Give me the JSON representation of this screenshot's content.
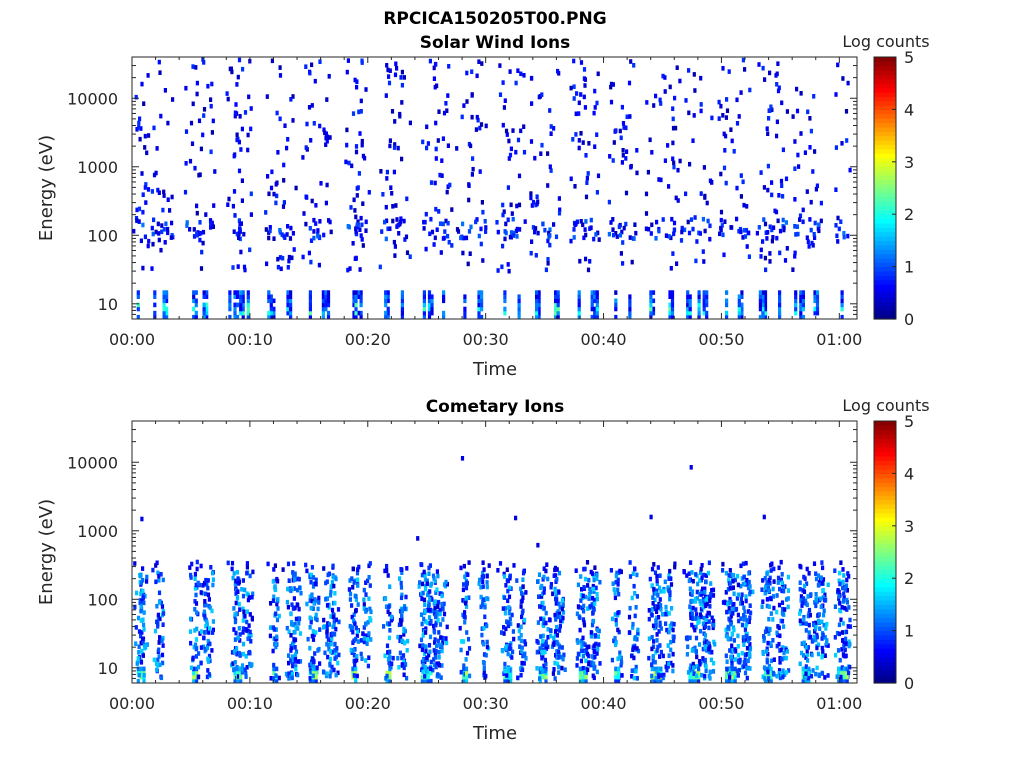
{
  "figure": {
    "title": "RPCICA150205T00.PNG"
  },
  "chart_data": [
    {
      "type": "heatmap",
      "title": "Solar Wind Ions",
      "xlabel": "Time",
      "ylabel": "Energy (eV)",
      "x_ticks": [
        "00:00",
        "00:10",
        "00:20",
        "00:30",
        "00:40",
        "00:50",
        "01:00"
      ],
      "x_tick_minutes": [
        0,
        10,
        20,
        30,
        40,
        50,
        60
      ],
      "xlim_minutes": [
        0,
        61.5
      ],
      "y_scale": "log",
      "ylim": [
        6,
        40000
      ],
      "y_ticks": [
        "10",
        "100",
        "1000",
        "10000"
      ],
      "y_tick_values": [
        10,
        100,
        1000,
        10000
      ],
      "colorbar": {
        "label": "Log counts",
        "range": [
          0,
          5
        ],
        "ticks": [
          "0",
          "1",
          "2",
          "3",
          "4",
          "5"
        ],
        "colormap": "jet"
      },
      "grid": false,
      "pattern_note_values": {
        "scan_minutes": [
          0.4,
          1.8,
          2.8,
          5.1,
          6.2,
          8.6,
          9.3,
          11.9,
          13.1,
          15.0,
          16.1,
          18.7,
          19.3,
          21.6,
          22.8,
          25.1,
          26.3,
          28.1,
          29.3,
          31.5,
          32.7,
          34.4,
          35.8,
          37.8,
          38.9,
          40.9,
          42.1,
          44.1,
          45.5,
          47.0,
          48.4,
          50.3,
          51.6,
          53.6,
          54.8,
          56.6,
          57.8,
          60.1
        ],
        "low_energy_peak_log": 2.4,
        "scatter_energy_range_ev": [
          30,
          40000
        ]
      }
    },
    {
      "type": "heatmap",
      "title": "Cometary Ions",
      "xlabel": "Time",
      "ylabel": "Energy (eV)",
      "x_ticks": [
        "00:00",
        "00:10",
        "00:20",
        "00:30",
        "00:40",
        "00:50",
        "01:00"
      ],
      "x_tick_minutes": [
        0,
        10,
        20,
        30,
        40,
        50,
        60
      ],
      "xlim_minutes": [
        0,
        61.5
      ],
      "y_scale": "log",
      "ylim": [
        6,
        40000
      ],
      "y_ticks": [
        "10",
        "100",
        "1000",
        "10000"
      ],
      "y_tick_values": [
        10,
        100,
        1000,
        10000
      ],
      "colorbar": {
        "label": "Log counts",
        "range": [
          0,
          5
        ],
        "ticks": [
          "0",
          "1",
          "2",
          "3",
          "4",
          "5"
        ],
        "colormap": "jet"
      },
      "grid": false,
      "pattern_note_values": {
        "scan_minutes": [
          0.4,
          2.0,
          5.1,
          6.0,
          8.6,
          9.6,
          11.9,
          13.2,
          15.0,
          16.4,
          18.6,
          19.6,
          21.5,
          22.7,
          24.5,
          25.6,
          28.0,
          29.6,
          31.5,
          32.8,
          34.5,
          35.6,
          37.9,
          38.8,
          40.9,
          42.3,
          44.0,
          45.4,
          47.2,
          48.3,
          50.3,
          51.5,
          53.6,
          54.8,
          56.8,
          57.9,
          59.8
        ],
        "band_peak_log": 2.9,
        "band_energy_range_ev": [
          7,
          250
        ],
        "isolated_points": [
          {
            "minute": 0.7,
            "energy_ev": 1500
          },
          {
            "minute": 24.1,
            "energy_ev": 780
          },
          {
            "minute": 27.9,
            "energy_ev": 11500
          },
          {
            "minute": 32.4,
            "energy_ev": 1550
          },
          {
            "minute": 34.3,
            "energy_ev": 620
          },
          {
            "minute": 43.9,
            "energy_ev": 1600
          },
          {
            "minute": 47.3,
            "energy_ev": 8500
          },
          {
            "minute": 53.5,
            "energy_ev": 1600
          }
        ]
      }
    }
  ]
}
